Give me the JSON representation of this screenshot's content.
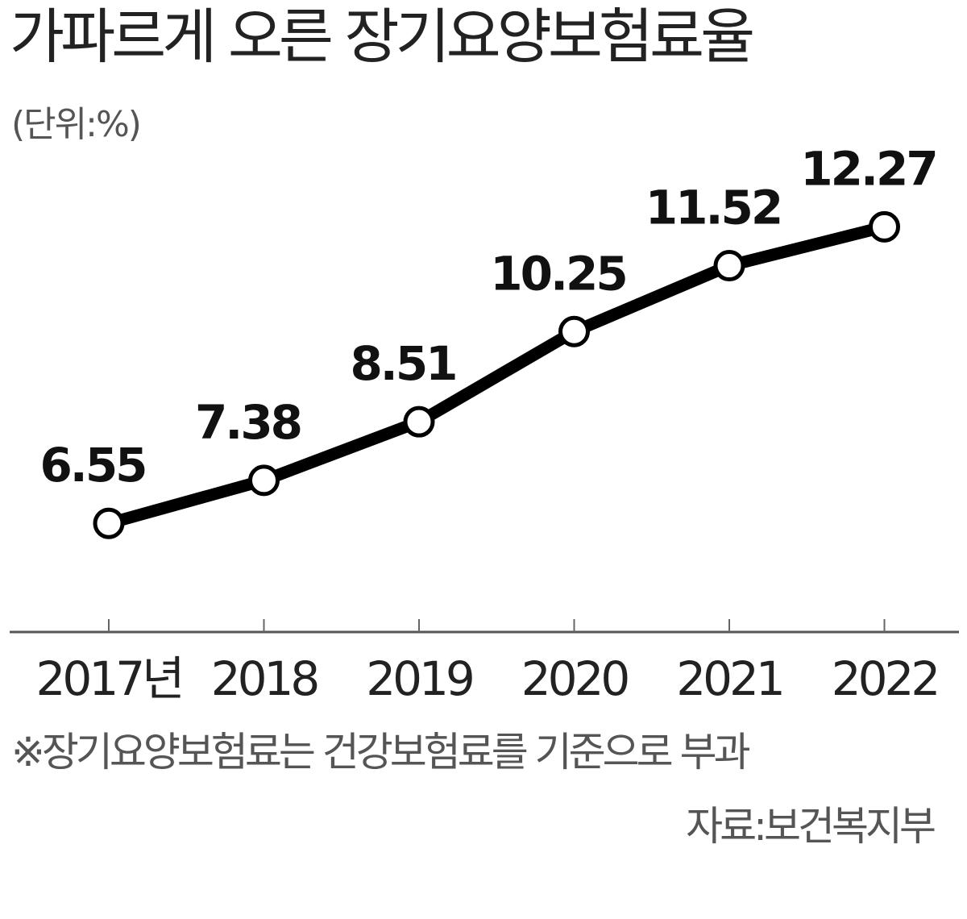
{
  "title": "가파르게 오른 장기요양보험료율",
  "unit_label": "(단위:%)",
  "note": "※장기요양보험료는 건강보험료를 기준으로 부과",
  "source": "자료:보건복지부",
  "chart_data": {
    "type": "line",
    "title": "가파르게 오른 장기요양보험료율",
    "categories": [
      "2017년",
      "2018",
      "2019",
      "2020",
      "2021",
      "2022"
    ],
    "values": [
      6.55,
      7.38,
      8.51,
      10.25,
      11.52,
      12.27
    ],
    "data_labels": [
      "6.55",
      "7.38",
      "8.51",
      "10.25",
      "11.52",
      "12.27"
    ],
    "xlabel": "",
    "ylabel": "",
    "ylim": [
      5.45,
      13.13
    ],
    "grid": false,
    "legend": "none",
    "line_color": "#000000",
    "marker_fill": "#ffffff"
  }
}
